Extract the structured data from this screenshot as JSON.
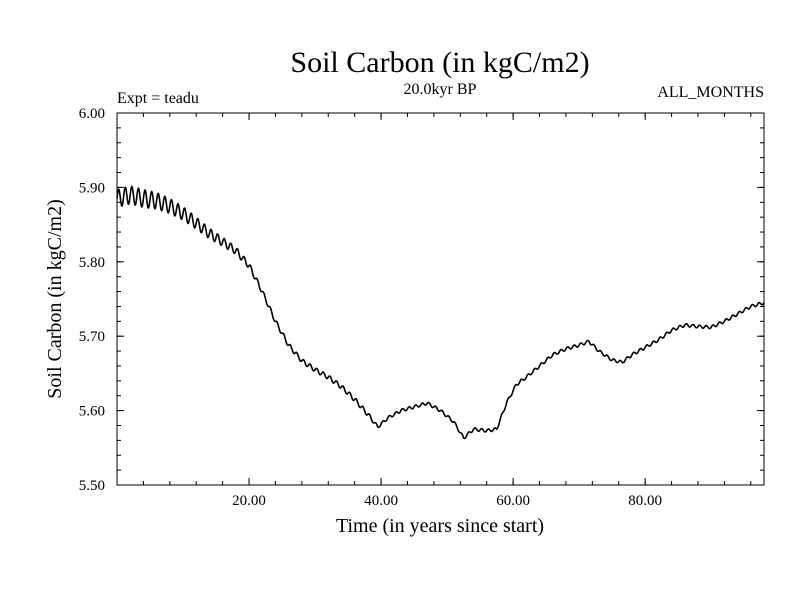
{
  "chart_data": {
    "type": "line",
    "title": "Soil Carbon (in kgC/m2)",
    "subtitle": "20.0kyr BP",
    "annotation_left": "Expt = teadu",
    "annotation_right": "ALL_MONTHS",
    "xlabel": "Time (in years since start)",
    "ylabel": "Soil Carbon (in kgC/m2)",
    "xlim": [
      0,
      98
    ],
    "ylim": [
      5.5,
      6.0
    ],
    "x_ticks": [
      20,
      40,
      60,
      80
    ],
    "x_tick_labels": [
      "20.00",
      "40.00",
      "60.00",
      "80.00"
    ],
    "y_ticks": [
      5.5,
      5.6,
      5.7,
      5.8,
      5.9,
      6.0
    ],
    "y_tick_labels": [
      "5.50",
      "5.60",
      "5.70",
      "5.80",
      "5.90",
      "6.00"
    ],
    "grid": false,
    "series": [
      {
        "name": "Soil Carbon",
        "color": "#000000",
        "x": [
          0,
          2,
          4,
          6,
          8,
          10,
          12,
          14,
          16,
          18,
          20,
          22,
          24,
          26,
          28,
          30,
          32,
          34,
          36,
          38,
          39.5,
          41,
          43,
          45,
          47,
          49,
          51,
          52.5,
          54,
          56,
          57.5,
          59,
          60.5,
          62,
          64,
          66,
          68,
          70,
          71.5,
          73,
          75,
          76.5,
          78,
          80,
          82,
          84,
          86,
          88,
          90,
          92,
          94,
          96,
          98
        ],
        "y": [
          5.885,
          5.89,
          5.885,
          5.882,
          5.875,
          5.865,
          5.852,
          5.838,
          5.827,
          5.815,
          5.795,
          5.76,
          5.72,
          5.688,
          5.667,
          5.655,
          5.645,
          5.632,
          5.615,
          5.595,
          5.578,
          5.59,
          5.6,
          5.605,
          5.61,
          5.6,
          5.585,
          5.563,
          5.575,
          5.573,
          5.575,
          5.61,
          5.635,
          5.645,
          5.66,
          5.675,
          5.683,
          5.688,
          5.693,
          5.68,
          5.668,
          5.665,
          5.675,
          5.685,
          5.695,
          5.708,
          5.715,
          5.713,
          5.712,
          5.72,
          5.73,
          5.74,
          5.745
        ],
        "seasonal_amplitude": [
          0.012,
          0.012,
          0.012,
          0.011,
          0.01,
          0.009,
          0.008,
          0.007,
          0.006,
          0.005,
          0.004,
          0.003,
          0.003,
          0.003,
          0.003,
          0.003,
          0.003,
          0.003,
          0.003,
          0.003,
          0.002,
          0.002,
          0.002,
          0.002,
          0.002,
          0.002,
          0.002,
          0.002,
          0.002,
          0.002,
          0.002,
          0.002,
          0.002,
          0.002,
          0.002,
          0.002,
          0.002,
          0.002,
          0.002,
          0.002,
          0.002,
          0.002,
          0.002,
          0.002,
          0.002,
          0.002,
          0.002,
          0.002,
          0.002,
          0.002,
          0.002,
          0.002,
          0.002
        ]
      }
    ]
  }
}
